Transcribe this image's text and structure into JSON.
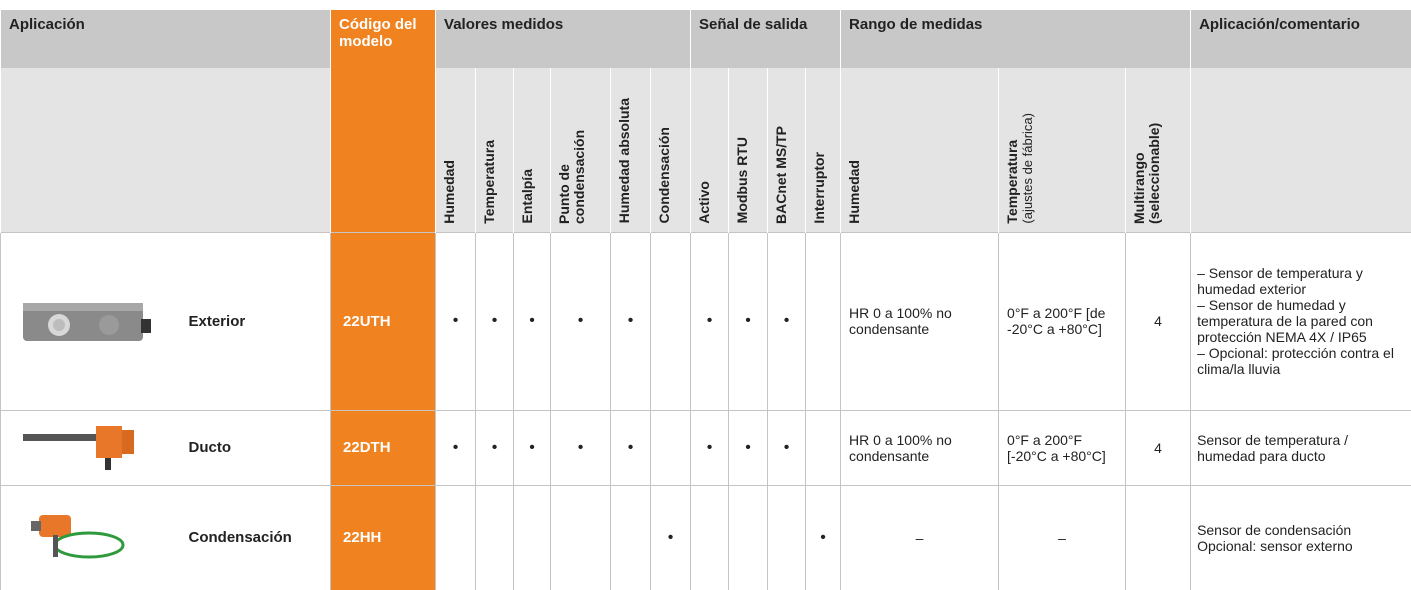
{
  "header": {
    "application": "Aplicación",
    "model_code": "Código del modelo",
    "measured_values": {
      "title": "Valores medidos",
      "columns": [
        "Humedad",
        "Temperatura",
        "Entalpía",
        "Punto de condensación",
        "Humedad absoluta",
        "Condensación"
      ]
    },
    "output_signal": {
      "title": "Señal de salida",
      "columns": [
        "Activo",
        "Modbus RTU",
        "BACnet MS/TP",
        "Interruptor"
      ]
    },
    "measurement_range": {
      "title": "Rango de medidas",
      "columns": [
        {
          "label": "Humedad"
        },
        {
          "label": "Temperatura",
          "note": "(ajustes de fábrica)"
        },
        {
          "label": "Multirango (seleccionable)"
        }
      ]
    },
    "comment": "Aplicación/comentario"
  },
  "rows": [
    {
      "name": "Exterior",
      "code": "22UTH",
      "measured": [
        "•",
        "•",
        "•",
        "•",
        "•",
        null
      ],
      "signals": [
        "•",
        "•",
        "•",
        null
      ],
      "humidity_range": "HR 0 a 100% no condensante",
      "temperature_range": "0°F a 200°F [de -20°C a +80°C]",
      "multirange": "4",
      "comment": [
        "– Sensor de temperatura y humedad exterior",
        "– Sensor de humedad y temperatura de la pared con protección NEMA 4X / IP65",
        "– Opcional: protección contra el clima/la lluvia"
      ]
    },
    {
      "name": "Ducto",
      "code": "22DTH",
      "measured": [
        "•",
        "•",
        "•",
        "•",
        "•",
        null
      ],
      "signals": [
        "•",
        "•",
        "•",
        null
      ],
      "humidity_range": "HR 0 a 100% no condensante",
      "temperature_range": "0°F a 200°F [-20°C a +80°C]",
      "multirange": "4",
      "comment": [
        "Sensor de temperatura / humedad para ducto"
      ]
    },
    {
      "name": "Condensación",
      "code": "22HH",
      "measured": [
        null,
        null,
        null,
        null,
        null,
        "•"
      ],
      "signals": [
        null,
        null,
        null,
        "•"
      ],
      "humidity_range": "–",
      "temperature_range": "–",
      "multirange": null,
      "comment": [
        "Sensor de condensación",
        "Opcional: sensor externo"
      ]
    }
  ]
}
